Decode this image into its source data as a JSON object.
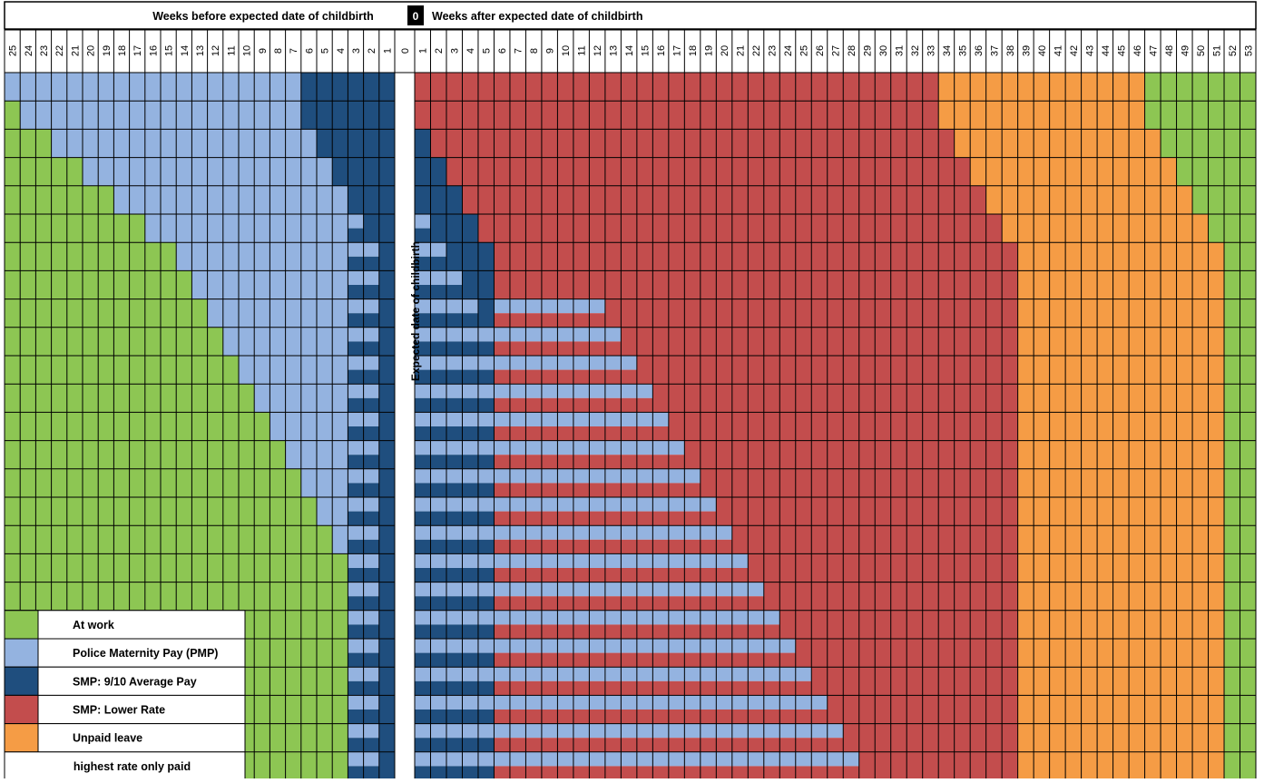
{
  "header": {
    "before_label": "Weeks before expected date of childbirth",
    "zero_label": "0",
    "after_label": "Weeks after expected date of childbirth"
  },
  "center_label": "Expected date of childbirth",
  "colors": {
    "work": "#8dc653",
    "pmp": "#94b3e0",
    "smp_high": "#1f4e7e",
    "smp_low": "#c34d4d",
    "unpaid": "#f59c45",
    "grid": "#000000"
  },
  "chart_data": {
    "type": "heatmap",
    "before_weeks": [
      25,
      24,
      23,
      22,
      21,
      20,
      19,
      18,
      17,
      16,
      15,
      14,
      13,
      12,
      11,
      10,
      9,
      8,
      7,
      6,
      5,
      4,
      3,
      2,
      1
    ],
    "after_weeks": [
      1,
      2,
      3,
      4,
      5,
      6,
      7,
      8,
      9,
      10,
      11,
      12,
      13,
      14,
      15,
      16,
      17,
      18,
      19,
      20,
      21,
      22,
      23,
      24,
      25,
      26,
      27,
      28,
      29,
      30,
      31,
      32,
      33,
      34,
      35,
      36,
      37,
      38,
      39,
      40,
      41,
      42,
      43,
      44,
      45,
      46,
      47,
      48,
      49,
      50,
      51,
      52,
      53
    ],
    "rows": 25,
    "pmp_weeks_per_row": 19,
    "smp_high_weeks": 6,
    "smp_low_weeks": 33,
    "unpaid_weeks": 13,
    "smp_high_before_by_row": [
      6,
      6,
      5,
      4,
      3,
      2,
      1,
      1,
      1,
      1,
      1,
      1,
      1,
      1,
      1,
      1,
      1,
      1,
      1,
      1,
      1,
      1,
      1,
      1,
      1
    ],
    "series": [
      {
        "name": "At work",
        "key": "work"
      },
      {
        "name": "Police Maternity Pay (PMP)",
        "key": "pmp"
      },
      {
        "name": "SMP: 9/10 Average Pay",
        "key": "smp_high"
      },
      {
        "name": "SMP: Lower Rate",
        "key": "smp_low"
      },
      {
        "name": "Unpaid leave",
        "key": "unpaid"
      },
      {
        "name": "highest rate only paid",
        "key": "striped"
      }
    ]
  }
}
